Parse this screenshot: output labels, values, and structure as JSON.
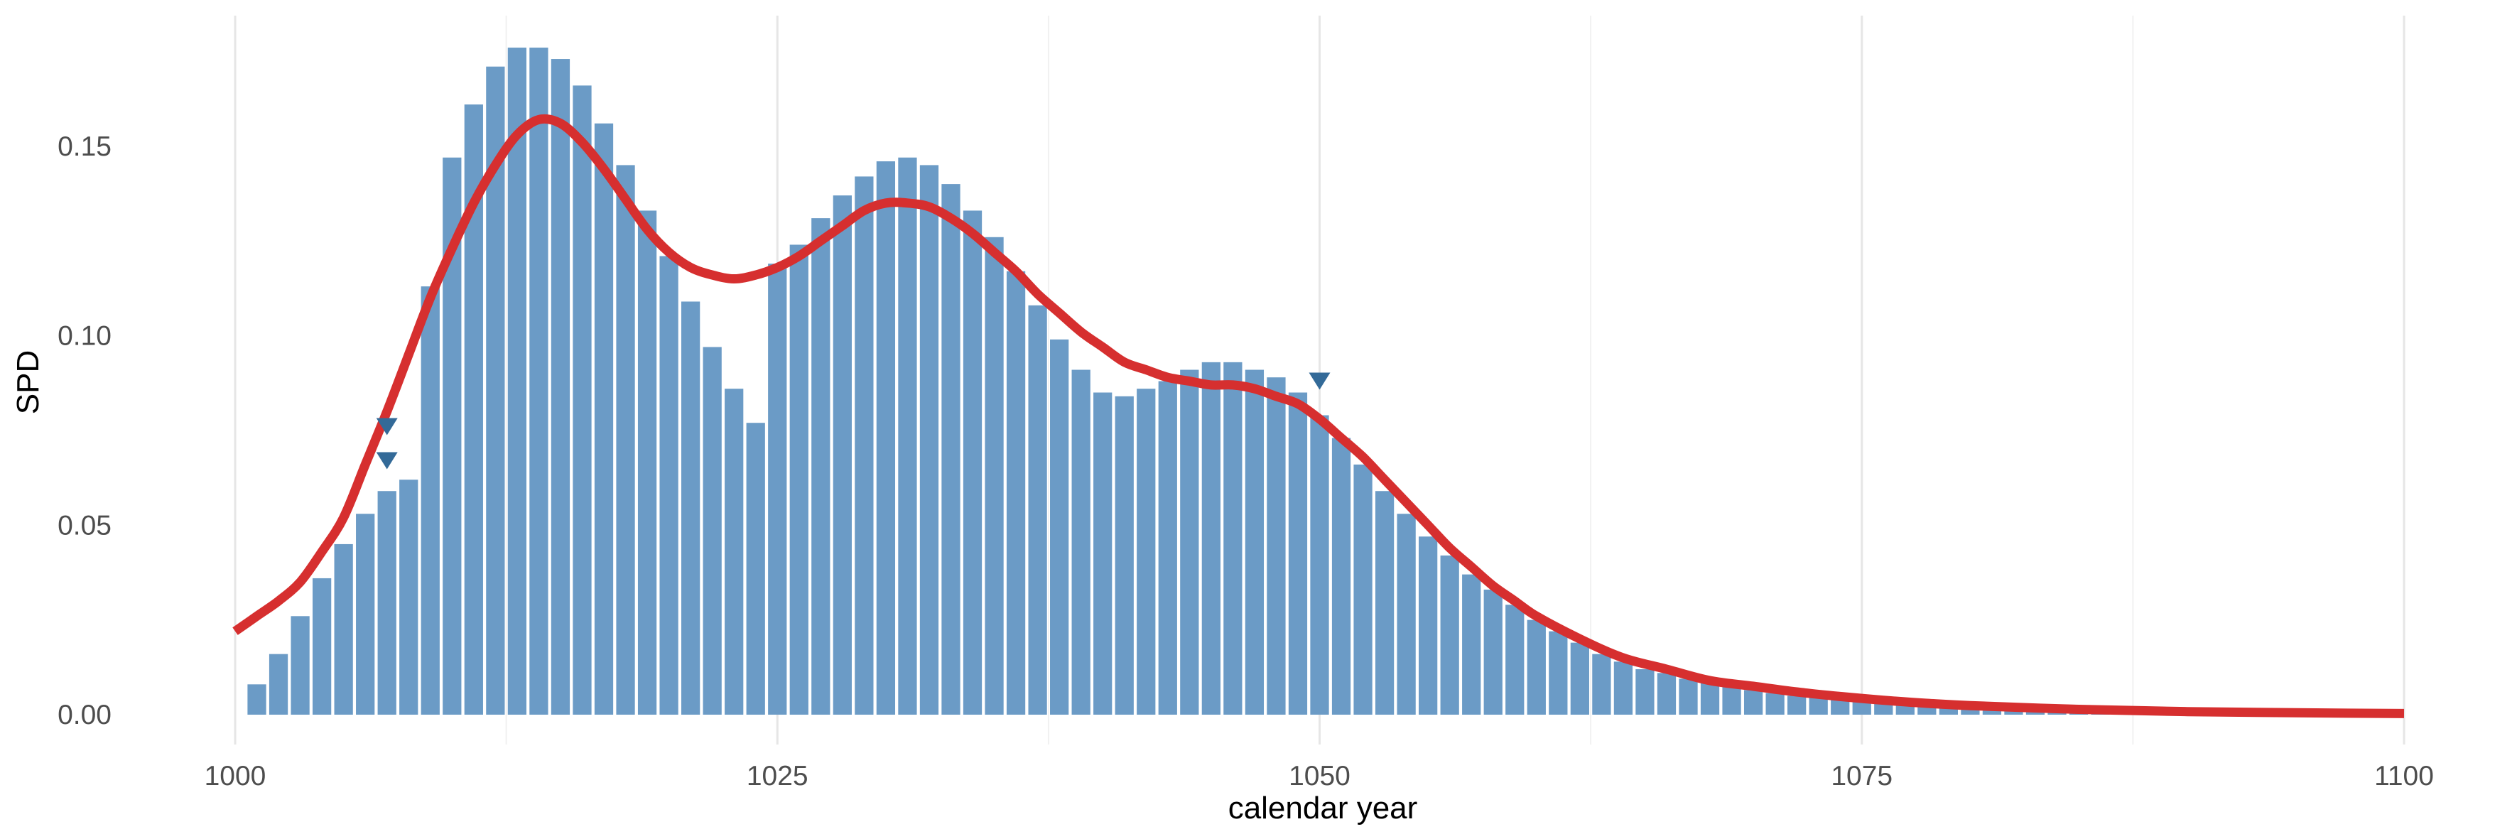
{
  "chart_data": {
    "type": "bar",
    "xlabel": "calendar year",
    "ylabel": "SPD",
    "xlim": [
      1000,
      1100
    ],
    "ylim": [
      0,
      0.175
    ],
    "x_ticks": [
      1000,
      1025,
      1050,
      1075,
      1100
    ],
    "x_minor_gridlines": [
      1012.5,
      1037.5,
      1062.5,
      1087.5
    ],
    "y_ticks": [
      0.0,
      0.05,
      0.1,
      0.15
    ],
    "y_tick_labels": [
      "0.00",
      "0.05",
      "0.10",
      "0.15"
    ],
    "grid": "vertical",
    "series": [
      {
        "type": "bar",
        "x": [
          1001,
          1002,
          1003,
          1004,
          1005,
          1006,
          1007,
          1008,
          1009,
          1010,
          1011,
          1012,
          1013,
          1014,
          1015,
          1016,
          1017,
          1018,
          1019,
          1020,
          1021,
          1022,
          1023,
          1024,
          1025,
          1026,
          1027,
          1028,
          1029,
          1030,
          1031,
          1032,
          1033,
          1034,
          1035,
          1036,
          1037,
          1038,
          1039,
          1040,
          1041,
          1042,
          1043,
          1044,
          1045,
          1046,
          1047,
          1048,
          1049,
          1050,
          1051,
          1052,
          1053,
          1054,
          1055,
          1056,
          1057,
          1058,
          1059,
          1060,
          1061,
          1062,
          1063,
          1064,
          1065,
          1066,
          1067,
          1068,
          1069,
          1070,
          1071,
          1072,
          1073,
          1074,
          1075,
          1076,
          1077,
          1078,
          1079,
          1080,
          1081,
          1082,
          1083,
          1084,
          1085,
          1086,
          1087,
          1088,
          1089,
          1090,
          1091,
          1092,
          1093,
          1094,
          1095,
          1096,
          1097,
          1098,
          1099
        ],
        "values": [
          0.008,
          0.016,
          0.026,
          0.036,
          0.045,
          0.053,
          0.059,
          0.062,
          0.113,
          0.147,
          0.161,
          0.171,
          0.176,
          0.176,
          0.173,
          0.166,
          0.156,
          0.145,
          0.133,
          0.121,
          0.109,
          0.097,
          0.086,
          0.077,
          0.119,
          0.124,
          0.131,
          0.137,
          0.142,
          0.146,
          0.147,
          0.145,
          0.14,
          0.133,
          0.126,
          0.117,
          0.108,
          0.099,
          0.091,
          0.085,
          0.084,
          0.086,
          0.088,
          0.091,
          0.093,
          0.093,
          0.091,
          0.089,
          0.085,
          0.079,
          0.073,
          0.066,
          0.059,
          0.053,
          0.047,
          0.042,
          0.037,
          0.033,
          0.029,
          0.025,
          0.022,
          0.019,
          0.016,
          0.014,
          0.012,
          0.011,
          0.0095,
          0.0085,
          0.0075,
          0.0065,
          0.0057,
          0.005,
          0.0044,
          0.0039,
          0.0035,
          0.0031,
          0.0028,
          0.0025,
          0.0022,
          0.002,
          0.0018,
          0.0016,
          0.0014,
          0.0013,
          0.0012,
          0.0011,
          0.001,
          0.0009,
          0.0008,
          0.0008,
          0.0007,
          0.0006,
          0.0006,
          0.0005,
          0.0005,
          0.0004,
          0.0004,
          0.0004,
          0.0003
        ],
        "color": "#6b9bc6"
      },
      {
        "type": "line",
        "x": [
          1000,
          1001,
          1002,
          1003,
          1004,
          1005,
          1006,
          1007,
          1008,
          1009,
          1010,
          1011,
          1012,
          1013,
          1014,
          1015,
          1016,
          1017,
          1018,
          1019,
          1020,
          1021,
          1022,
          1023,
          1024,
          1025,
          1026,
          1027,
          1028,
          1029,
          1030,
          1031,
          1032,
          1033,
          1034,
          1035,
          1036,
          1037,
          1038,
          1039,
          1040,
          1041,
          1042,
          1043,
          1044,
          1045,
          1046,
          1047,
          1048,
          1049,
          1050,
          1051,
          1052,
          1053,
          1054,
          1055,
          1056,
          1057,
          1058,
          1059,
          1060,
          1062,
          1064,
          1066,
          1068,
          1070,
          1072,
          1074,
          1076,
          1078,
          1080,
          1085,
          1090,
          1095,
          1100
        ],
        "y": [
          0.022,
          0.026,
          0.03,
          0.035,
          0.043,
          0.052,
          0.066,
          0.08,
          0.095,
          0.11,
          0.123,
          0.135,
          0.145,
          0.153,
          0.157,
          0.156,
          0.151,
          0.144,
          0.136,
          0.128,
          0.122,
          0.118,
          0.116,
          0.115,
          0.116,
          0.118,
          0.121,
          0.125,
          0.129,
          0.133,
          0.135,
          0.135,
          0.134,
          0.131,
          0.127,
          0.122,
          0.117,
          0.111,
          0.106,
          0.101,
          0.097,
          0.093,
          0.091,
          0.089,
          0.088,
          0.087,
          0.087,
          0.086,
          0.084,
          0.082,
          0.078,
          0.073,
          0.068,
          0.062,
          0.056,
          0.05,
          0.044,
          0.039,
          0.034,
          0.03,
          0.026,
          0.02,
          0.015,
          0.012,
          0.009,
          0.0075,
          0.006,
          0.0048,
          0.0038,
          0.003,
          0.0024,
          0.0014,
          0.0008,
          0.0005,
          0.0003
        ],
        "color": "#d62f2f"
      },
      {
        "type": "scatter",
        "marker": "triangle-down",
        "x": [
          1007,
          1007,
          1050
        ],
        "y": [
          0.076,
          0.067,
          0.088
        ],
        "color": "#336a98"
      }
    ]
  }
}
